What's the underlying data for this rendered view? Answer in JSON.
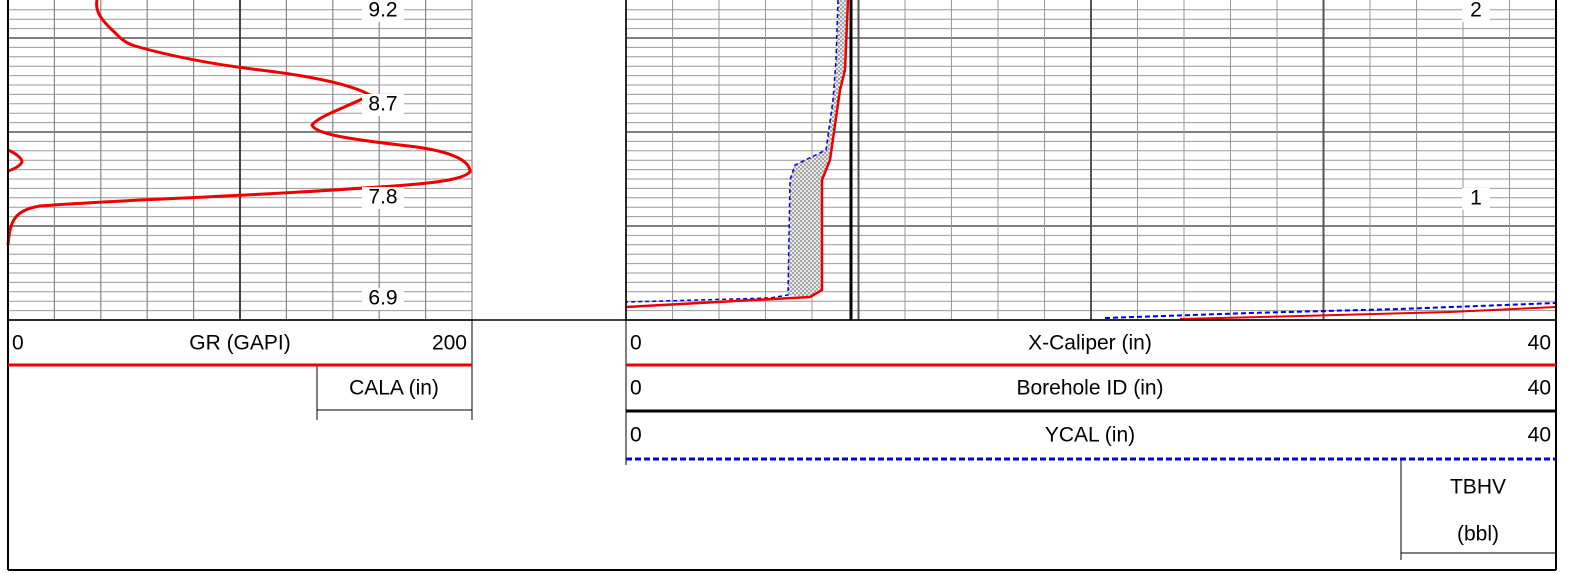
{
  "left_track": {
    "cala_labels": [
      9.2,
      8.7,
      7.8,
      6.9
    ],
    "curves": [
      {
        "name": "GR (GAPI)",
        "min": 0,
        "max": 200
      },
      {
        "name": "CALA (in)"
      }
    ]
  },
  "right_track": {
    "tbhv_labels": [
      2,
      1
    ],
    "curves": [
      {
        "name": "X-Caliper (in)",
        "min": 0,
        "max": 40
      },
      {
        "name": "Borehole ID (in)",
        "min": 0,
        "max": 40
      },
      {
        "name": "YCAL (in)",
        "min": 0,
        "max": 40
      }
    ],
    "tbhv": {
      "name": "TBHV",
      "unit": "(bbl)"
    }
  }
}
